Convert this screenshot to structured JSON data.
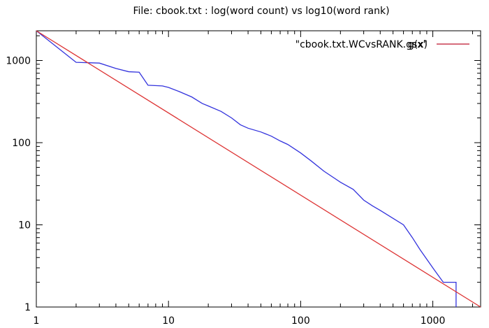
{
  "chart_data": {
    "type": "line",
    "title": "File: cbook.txt : log(word count) vs log10(word rank)",
    "xlabel": "",
    "ylabel": "",
    "x_scale": "log",
    "y_scale": "log",
    "xlim": [
      1,
      2300
    ],
    "ylim": [
      1,
      2300
    ],
    "x_ticks": [
      {
        "value": 1,
        "label": "1"
      },
      {
        "value": 10,
        "label": "10"
      },
      {
        "value": 100,
        "label": "100"
      },
      {
        "value": 1000,
        "label": "1000"
      }
    ],
    "y_ticks": [
      {
        "value": 1,
        "label": "1"
      },
      {
        "value": 10,
        "label": "10"
      },
      {
        "value": 100,
        "label": "100"
      },
      {
        "value": 1000,
        "label": "1000"
      }
    ],
    "grid": false,
    "legend_position": "top-right",
    "legend": [
      {
        "label": "\"cbook.txt.WCvsRANK.gsx\"",
        "color": "#3333dd"
      },
      {
        "label": "g(x)",
        "color": "#dd3333"
      }
    ],
    "series": [
      {
        "name": "\"cbook.txt.WCvsRANK.gsx\"",
        "color": "#3333dd",
        "x": [
          1,
          2,
          3,
          4,
          5,
          6,
          7,
          9,
          10,
          12,
          15,
          18,
          20,
          25,
          30,
          35,
          40,
          50,
          60,
          70,
          80,
          100,
          120,
          150,
          180,
          200,
          250,
          300,
          350,
          400,
          500,
          600,
          700,
          800,
          1000,
          1200,
          1500,
          1500
        ],
        "y": [
          2300,
          950,
          930,
          800,
          730,
          720,
          500,
          490,
          470,
          420,
          360,
          300,
          280,
          240,
          200,
          165,
          150,
          135,
          120,
          105,
          95,
          75,
          60,
          45,
          37,
          33,
          27,
          20,
          17,
          15,
          12,
          10,
          7,
          5,
          3,
          2,
          2,
          1
        ]
      },
      {
        "name": "g(x)",
        "color": "#dd3333",
        "x": [
          1,
          2300
        ],
        "y": [
          2300,
          1
        ]
      }
    ]
  }
}
